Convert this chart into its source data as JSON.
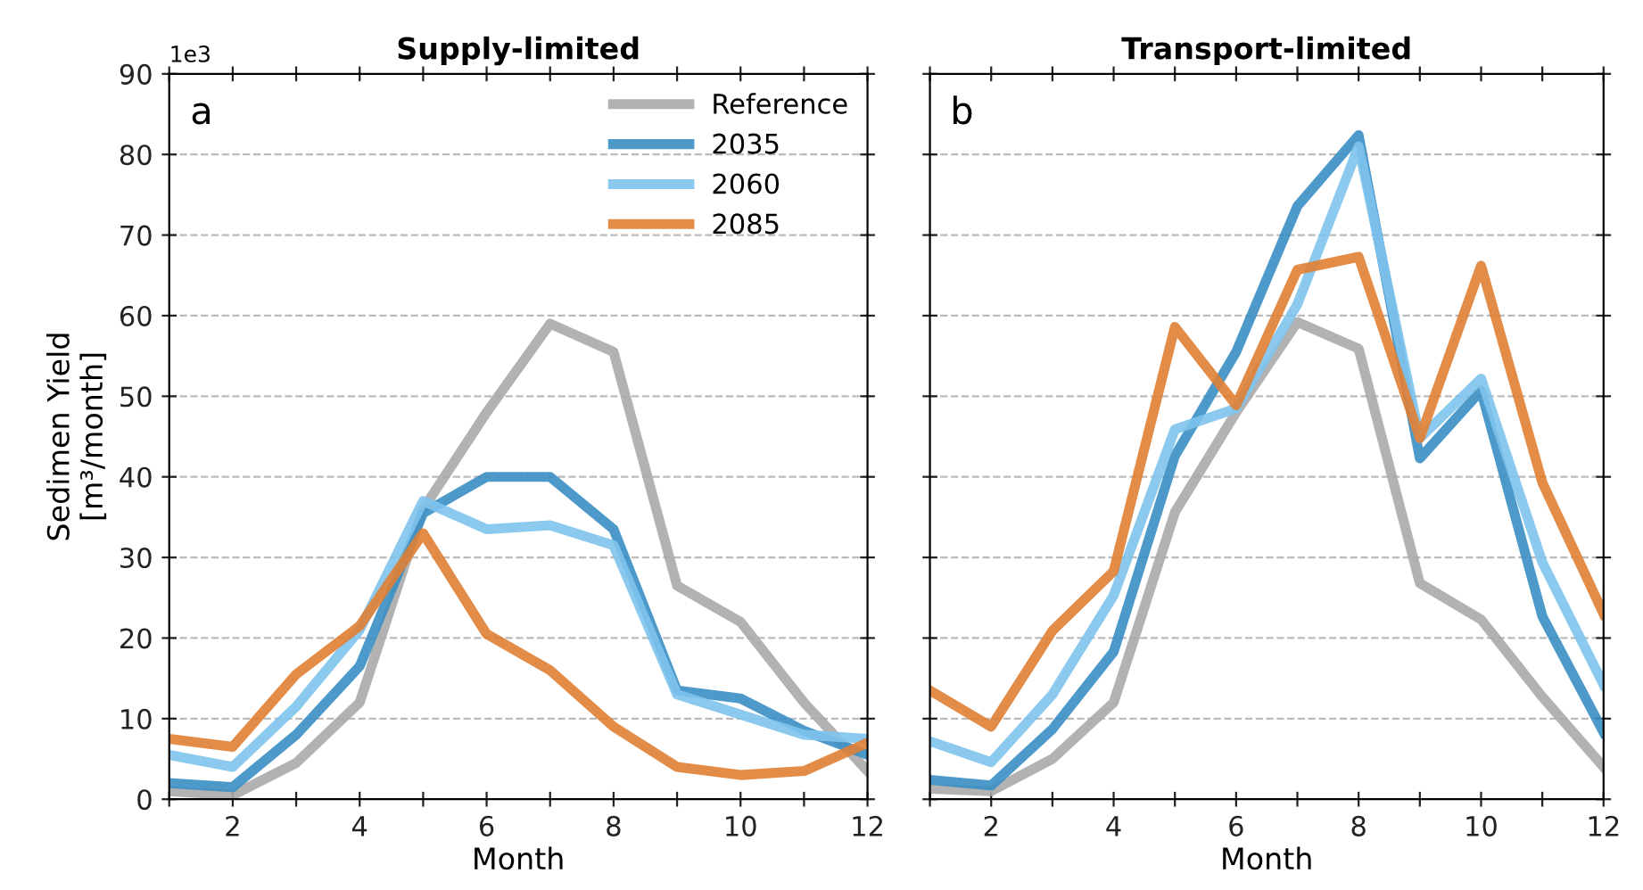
{
  "chart_data": [
    {
      "type": "line",
      "title": "Supply-limited",
      "xlabel": "Month",
      "ylabel": "Sedimen Yield\n[m³/month]",
      "annotations": [
        "1e3",
        "a"
      ],
      "x": [
        1,
        2,
        3,
        4,
        5,
        6,
        7,
        8,
        9,
        10,
        11,
        12
      ],
      "series": [
        {
          "name": "Reference",
          "color": "#aaaaaa",
          "values": [
            1,
            0.5,
            4.5,
            12,
            36,
            48,
            59,
            55.5,
            26.5,
            22,
            12,
            3.5
          ]
        },
        {
          "name": "2035",
          "color": "#3a8fc4",
          "values": [
            2,
            1.5,
            8,
            16.5,
            35.5,
            40,
            40,
            33.5,
            13.5,
            12.5,
            8.5,
            5.5
          ]
        },
        {
          "name": "2060",
          "color": "#7ec3ec",
          "values": [
            5.5,
            4,
            11.5,
            21,
            37,
            33.5,
            34,
            31.5,
            13,
            10.5,
            8,
            7.5
          ]
        },
        {
          "name": "2085",
          "color": "#e07f34",
          "values": [
            7.5,
            6.5,
            15.5,
            21.5,
            33,
            20.5,
            16,
            9,
            4,
            3,
            3.5,
            7
          ]
        }
      ],
      "xlim": [
        1,
        12
      ],
      "ylim": [
        0,
        90
      ],
      "xticks": [
        {
          "value": 1,
          "label": null
        },
        2,
        {
          "value": 3,
          "label": null
        },
        4,
        {
          "value": 5,
          "label": null
        },
        6,
        {
          "value": 7,
          "label": null
        },
        8,
        {
          "value": 9,
          "label": null
        },
        10,
        {
          "value": 11,
          "label": null
        },
        12
      ],
      "yticks": [
        0,
        10,
        20,
        30,
        40,
        50,
        60,
        70,
        80,
        90
      ],
      "grid": "y",
      "legend": "top right",
      "line_style": "solid",
      "marker": "none"
    },
    {
      "type": "line",
      "title": "Transport-limited",
      "xlabel": "Month",
      "annotations": [
        "b"
      ],
      "x": [
        1,
        2,
        3,
        4,
        5,
        6,
        7,
        8,
        9,
        10,
        11,
        12
      ],
      "series": [
        {
          "color": "#aaaaaa",
          "values": [
            1.3,
            1,
            5,
            12,
            35.6,
            48,
            59.2,
            55.9,
            26.8,
            22.3,
            12.7,
            4
          ]
        },
        {
          "color": "#3a8fc4",
          "values": [
            2.4,
            1.7,
            8.7,
            18.3,
            42.6,
            55.5,
            73.6,
            82.4,
            42.3,
            50.7,
            22.7,
            8.3
          ]
        },
        {
          "color": "#7ec3ec",
          "values": [
            7.2,
            4.6,
            13,
            25.3,
            45.9,
            48.5,
            61.4,
            81,
            44.8,
            52.2,
            29.4,
            14.2
          ]
        },
        {
          "color": "#e07f34",
          "values": [
            13.5,
            9,
            20.9,
            28.3,
            58.6,
            48.9,
            65.7,
            67.3,
            44.8,
            66.2,
            39.3,
            23
          ]
        }
      ],
      "xlim": [
        1,
        12
      ],
      "ylim": [
        0,
        90
      ],
      "xticks": [
        {
          "value": 1,
          "label": null
        },
        2,
        {
          "value": 3,
          "label": null
        },
        4,
        {
          "value": 5,
          "label": null
        },
        6,
        {
          "value": 7,
          "label": null
        },
        8,
        {
          "value": 9,
          "label": null
        },
        10,
        {
          "value": 11,
          "label": null
        },
        12
      ],
      "yticks": [
        0,
        10,
        20,
        30,
        40,
        50,
        60,
        70,
        80,
        90
      ],
      "tick_labels": "x",
      "grid": "y",
      "line_style": "solid",
      "marker": "none"
    }
  ]
}
